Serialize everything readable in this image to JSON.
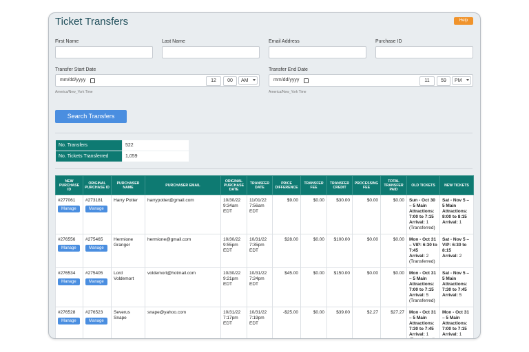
{
  "header": {
    "title": "Ticket Transfers",
    "help": "Help"
  },
  "filters": {
    "first_name": {
      "label": "First Name"
    },
    "last_name": {
      "label": "Last Name"
    },
    "email": {
      "label": "Email Address"
    },
    "purchase_id": {
      "label": "Purchase ID"
    },
    "start": {
      "label": "Transfer Start Date",
      "placeholder": "mm/dd/yyyy",
      "hour": "12",
      "minute": "00",
      "ampm": "AM",
      "timezone": "America/New_York Time"
    },
    "end": {
      "label": "Transfer End Date",
      "placeholder": "mm/dd/yyyy",
      "hour": "11",
      "minute": "59",
      "ampm": "PM",
      "timezone": "America/New_York Time"
    },
    "search": "Search Transfers"
  },
  "summary": {
    "rows": [
      [
        "No. Transfers",
        "522"
      ],
      [
        "No. Tickets Transferred",
        "1,059"
      ]
    ]
  },
  "table": {
    "headers": [
      "NEW PURCHASE ID",
      "ORIGINAL PURCHASE ID",
      "PURCHASER NAME",
      "PURCHASER EMAIL",
      "ORIGINAL PURCHASE DATE",
      "TRANSFER DATE",
      "PRICE DIFFERENCE",
      "TRANSFER FEE",
      "TRANSFER CREDIT",
      "PROCESSING FEE",
      "TOTAL TRANSFER PAID",
      "OLD TICKETS",
      "NEW TICKETS"
    ],
    "manage_label": "Manage",
    "arrival_label": "Arrival:",
    "rows": [
      {
        "new_id": "#277061",
        "original_id": "#273181",
        "name": "Harry Potter",
        "email": "harrypotter@gmail.com",
        "original_date": "10/30/22 9:34am EDT",
        "transfer_date": "11/01/22 7:56am EDT",
        "price_difference": "$9.00",
        "transfer_fee": "$0.00",
        "transfer_credit": "$30.00",
        "processing_fee": "$0.00",
        "total_paid": "$0.00",
        "old_ticket": {
          "title": "Sun - Oct 30 – 5 Main Attractions: 7:00 to 7:15",
          "arrival": "1 (Transferred)"
        },
        "new_ticket": {
          "title": "Sat - Nov 5 – 5 Main Attractions: 8:00 to 8:15",
          "arrival": "1"
        }
      },
      {
        "new_id": "#276556",
        "original_id": "#275465",
        "name": "Hermione Granger",
        "email": "hermione@gmail.com",
        "original_date": "10/30/22 9:55pm EDT",
        "transfer_date": "10/31/22 7:35pm EDT",
        "price_difference": "$28.00",
        "transfer_fee": "$0.00",
        "transfer_credit": "$100.00",
        "processing_fee": "$0.00",
        "total_paid": "$0.00",
        "old_ticket": {
          "title": "Mon - Oct 31 – VIP: 6:30 to 7:45",
          "arrival": "2 (Transferred)"
        },
        "new_ticket": {
          "title": "Sat - Nov 5 – VIP: 6:30 to 8:15",
          "arrival": "2"
        }
      },
      {
        "new_id": "#276534",
        "original_id": "#275405",
        "name": "Lord Voldemort",
        "email": "voldemort@hotmail.com",
        "original_date": "10/30/22 9:21pm EDT",
        "transfer_date": "10/31/22 7:24pm EDT",
        "price_difference": "$45.00",
        "transfer_fee": "$0.00",
        "transfer_credit": "$150.00",
        "processing_fee": "$0.00",
        "total_paid": "$0.00",
        "old_ticket": {
          "title": "Mon - Oct 31 – 5 Main Attractions: 7:00 to 7:15",
          "arrival": "5 (Transferred)"
        },
        "new_ticket": {
          "title": "Sat - Nov 5 – 5 Main Attractions: 7:30 to 7:45",
          "arrival": "5"
        }
      },
      {
        "new_id": "#276528",
        "original_id": "#276523",
        "name": "Severus Snape",
        "email": "snape@yahoo.com",
        "original_date": "10/31/22 7:17pm EDT",
        "transfer_date": "10/31/22 7:19pm EDT",
        "price_difference": "-$25.00",
        "transfer_fee": "$0.00",
        "transfer_credit": "$39.00",
        "processing_fee": "$2.27",
        "total_paid": "$27.27",
        "old_ticket": {
          "title": "Mon - Oct 31 – 5 Main Attractions: 7:30 to 7:45",
          "arrival": "1 (Transferred)"
        },
        "new_ticket": {
          "title": "Mon - Oct 31 – 5 Main Attractions: 7:00 to 7:15",
          "arrival": "1"
        }
      }
    ]
  }
}
